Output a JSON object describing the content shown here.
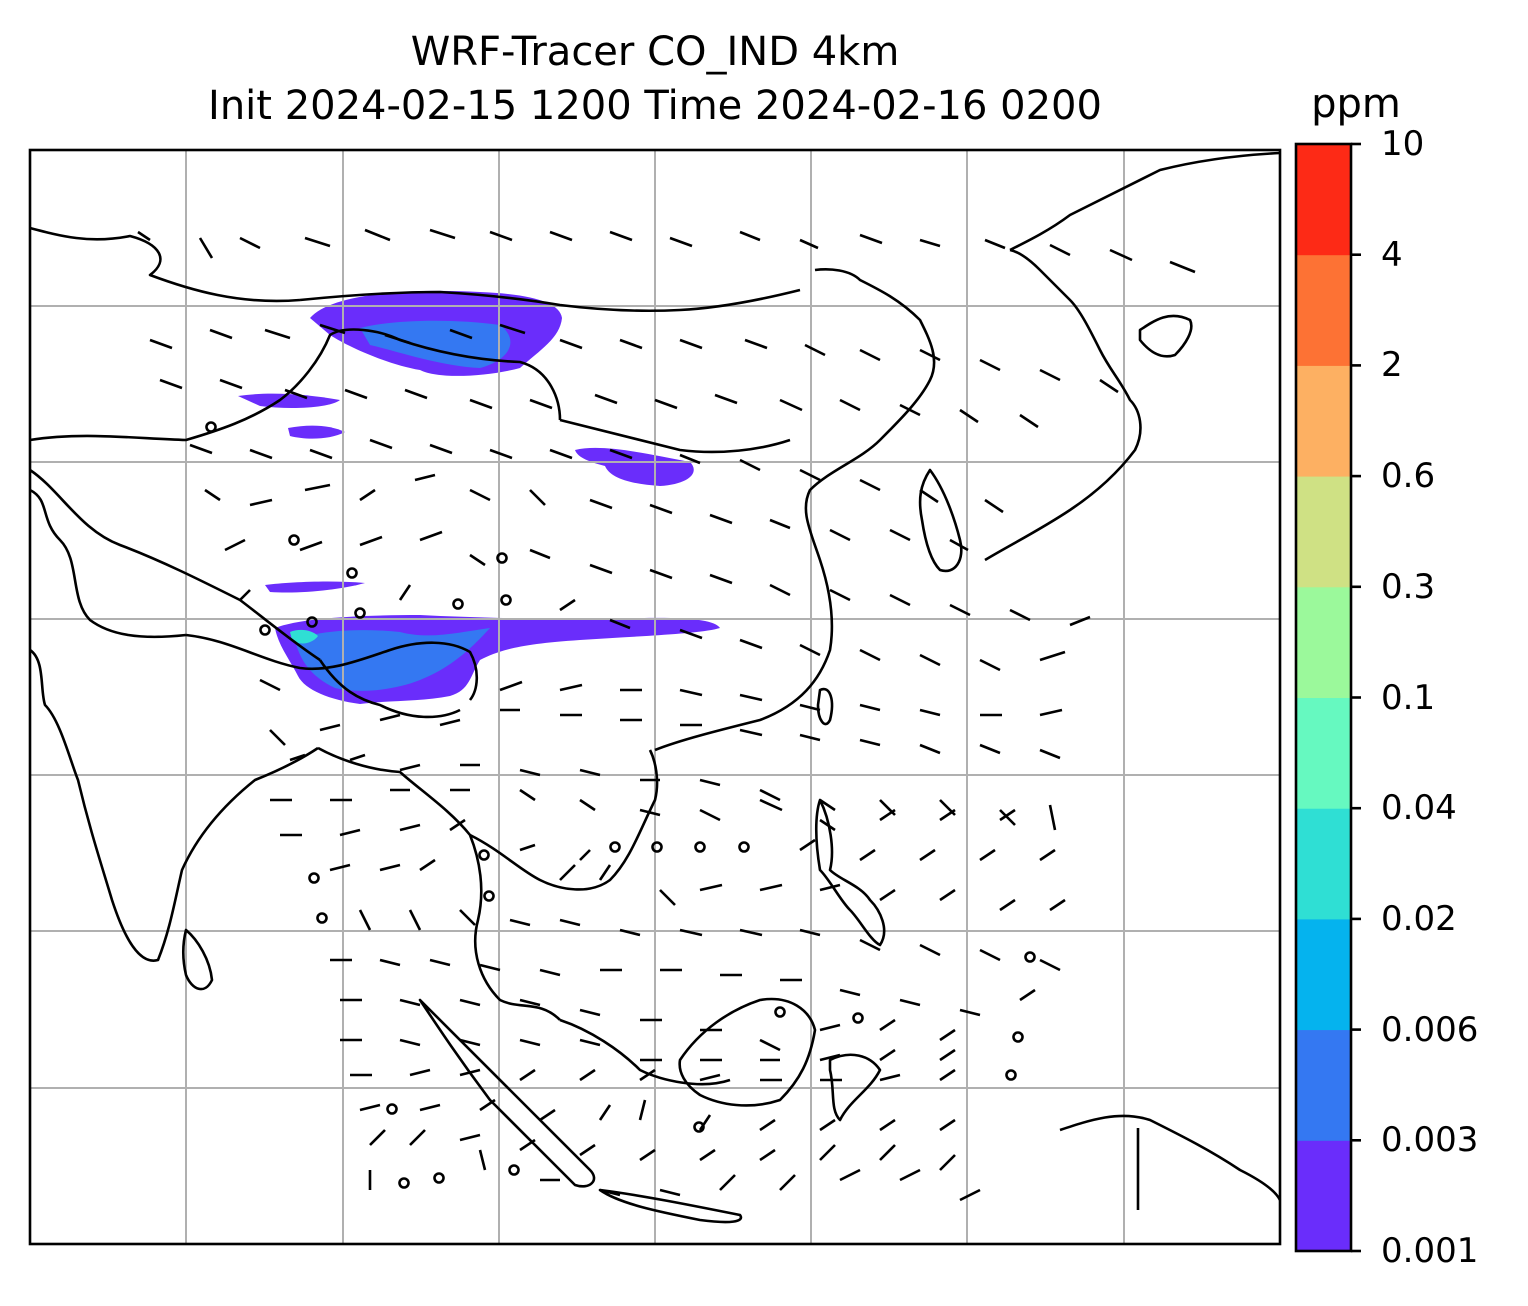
{
  "title_line1": "WRF-Tracer CO_IND 4km",
  "title_line2": "Init 2024-02-15 1200 Time 2024-02-16 0200",
  "colorbar": {
    "unit": "ppm",
    "levels": [
      "0.001",
      "0.003",
      "0.006",
      "0.02",
      "0.04",
      "0.1",
      "0.3",
      "0.6",
      "2",
      "4",
      "10"
    ],
    "colors": [
      "#6a2dfb",
      "#3478f2",
      "#05b3ee",
      "#2fdfd4",
      "#66f9c0",
      "#9bf99b",
      "#cfe184",
      "#fdb062",
      "#fd7234",
      "#fd2a16"
    ]
  },
  "map_style": {
    "gridlines": true,
    "coastlines_color": "#000000",
    "grid_color": "#b0b0b0",
    "wind_barbs_color": "#000000"
  }
}
